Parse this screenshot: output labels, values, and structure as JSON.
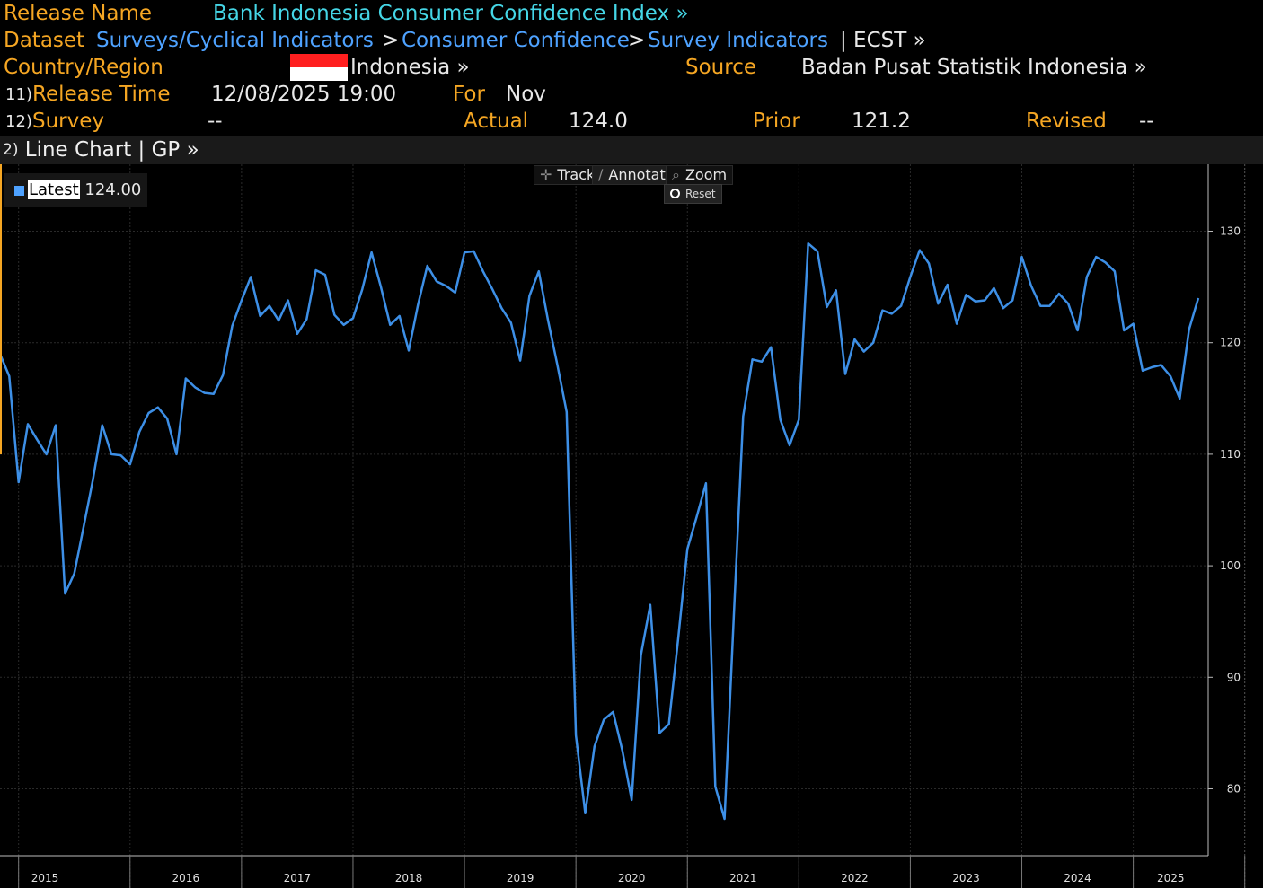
{
  "header": {
    "release_name_label": "Release Name",
    "release_name": "Bank Indonesia Consumer Confidence Index »",
    "dataset_label": "Dataset",
    "dataset_path": [
      "Surveys/Cyclical Indicators",
      "Consumer Confidence",
      "Survey Indicators"
    ],
    "dataset_sep": ">",
    "dataset_tail": "| ECST »",
    "country_label": "Country/Region",
    "country": "Indonesia »",
    "source_label": "Source",
    "source": "Badan Pusat Statistik Indonesia »",
    "release_time_num": "11)",
    "release_time_label": "Release Time",
    "release_time": "12/08/2025 19:00",
    "for_label": "For",
    "for_value": "Nov",
    "survey_num": "12)",
    "survey_label": "Survey",
    "survey_value": "--",
    "actual_label": "Actual",
    "actual_value": "124.0",
    "prior_label": "Prior",
    "prior_value": "121.2",
    "revised_label": "Revised",
    "revised_value": "--"
  },
  "subheader": {
    "num": "2)",
    "title": "Line Chart | GP »"
  },
  "toolbar": {
    "track": "Track",
    "annotate": "Annotate",
    "zoom": "Zoom",
    "reset": "Reset"
  },
  "legend": {
    "name": "Latest",
    "value": "124.00",
    "color": "#4ea2ff"
  },
  "colors": {
    "label": "#f5a623",
    "link": "#4ea2ff",
    "title": "#45d6e6",
    "line": "#3d8fe6",
    "grid": "#2a2a2a"
  },
  "chart_data": {
    "type": "line",
    "ylim": [
      74,
      136
    ],
    "yticks": [
      80,
      90,
      100,
      110,
      120,
      130
    ],
    "xlabels": [
      "2015",
      "2016",
      "2017",
      "2018",
      "2019",
      "2020",
      "2021",
      "2022",
      "2023",
      "2024",
      "2025"
    ],
    "x_start": "2014-11",
    "x_end": "2025-11",
    "series": [
      {
        "values": [
          119.0,
          117.0,
          107.5,
          112.7,
          111.3,
          110.0,
          112.6,
          97.5,
          99.3,
          103.5,
          107.7,
          112.6,
          110.0,
          109.9,
          109.1,
          112.0,
          113.7,
          114.2,
          113.2,
          110.0,
          116.8,
          116.0,
          115.5,
          115.4,
          117.1,
          121.5,
          123.8,
          125.9,
          122.4,
          123.3,
          122.0,
          123.8,
          120.8,
          122.1,
          126.5,
          126.1,
          122.5,
          121.6,
          122.2,
          124.8,
          128.1,
          125.0,
          121.6,
          122.4,
          119.3,
          123.4,
          126.9,
          125.5,
          125.1,
          124.5,
          128.1,
          128.2,
          126.4,
          124.8,
          123.1,
          121.8,
          118.4,
          124.2,
          126.4,
          122.0,
          118.0,
          113.8,
          84.8,
          77.8,
          83.8,
          86.2,
          86.9,
          83.4,
          79.0,
          92.0,
          96.5,
          85.0,
          85.8,
          93.4,
          101.5,
          104.4,
          107.4,
          80.2,
          77.3,
          95.5,
          113.4,
          118.5,
          118.3,
          119.6,
          113.1,
          110.8,
          113.1,
          128.9,
          128.2,
          123.2,
          124.7,
          117.2,
          120.3,
          119.2,
          120.0,
          122.9,
          122.6,
          123.3,
          125.9,
          128.3,
          127.1,
          123.5,
          125.2,
          121.7,
          124.3,
          123.7,
          123.8,
          124.9,
          123.1,
          123.8,
          127.7,
          125.1,
          123.3,
          123.3,
          124.4,
          123.5,
          121.1,
          125.9,
          127.7,
          127.2,
          126.4,
          121.1,
          121.7,
          117.5,
          117.8,
          118.0,
          117.0,
          115.0,
          121.2,
          124.0
        ]
      }
    ],
    "latest_value": "124.00"
  }
}
